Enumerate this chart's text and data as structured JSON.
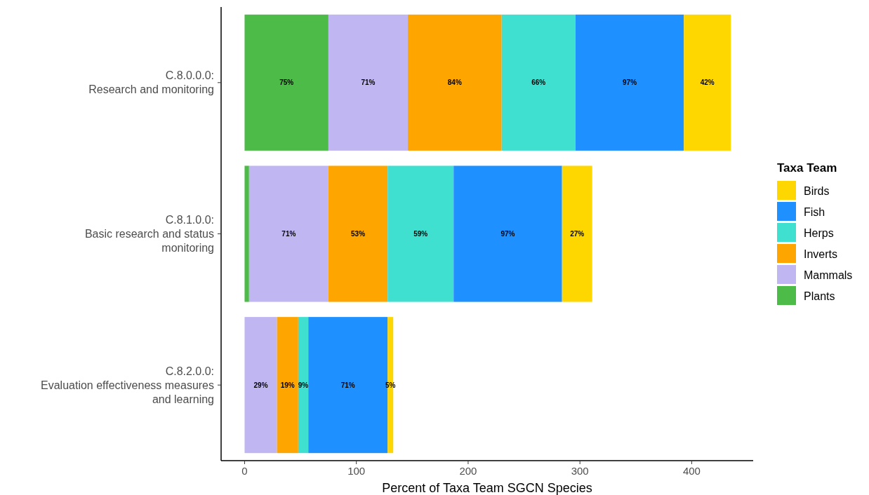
{
  "chart_data": {
    "type": "bar",
    "orientation": "horizontal",
    "stacked": true,
    "categories": [
      "C.8.0.0.0:\nResearch and monitoring",
      "C.8.1.0.0:\nBasic research and status\nmonitoring",
      "C.8.2.0.0:\nEvaluation effectiveness measures\nand learning"
    ],
    "xlabel": "Percent of Taxa Team SGCN Species",
    "legend_title": "Taxa Team",
    "legend": "right",
    "xlim": [
      -21,
      455
    ],
    "xticks": [
      0,
      100,
      200,
      300,
      400
    ],
    "grid": false,
    "series": [
      {
        "name": "Plants",
        "color": "#4cbb47",
        "values": [
          75,
          4,
          null
        ],
        "value_labels": [
          "75%",
          null,
          null
        ]
      },
      {
        "name": "Mammals",
        "color": "#c0b6f2",
        "values": [
          71,
          71,
          29
        ],
        "value_labels": [
          "71%",
          "71%",
          "29%"
        ]
      },
      {
        "name": "Inverts",
        "color": "#ffa500",
        "values": [
          84,
          53,
          19
        ],
        "value_labels": [
          "84%",
          "53%",
          "19%"
        ]
      },
      {
        "name": "Herps",
        "color": "#40e0d0",
        "values": [
          66,
          59,
          9
        ],
        "value_labels": [
          "66%",
          "59%",
          "9%"
        ]
      },
      {
        "name": "Fish",
        "color": "#1e90ff",
        "values": [
          97,
          97,
          71
        ],
        "value_labels": [
          "97%",
          "97%",
          "71%"
        ]
      },
      {
        "name": "Birds",
        "color": "#ffd700",
        "values": [
          42,
          27,
          5
        ],
        "value_labels": [
          "42%",
          "27%",
          "5%"
        ]
      }
    ]
  }
}
